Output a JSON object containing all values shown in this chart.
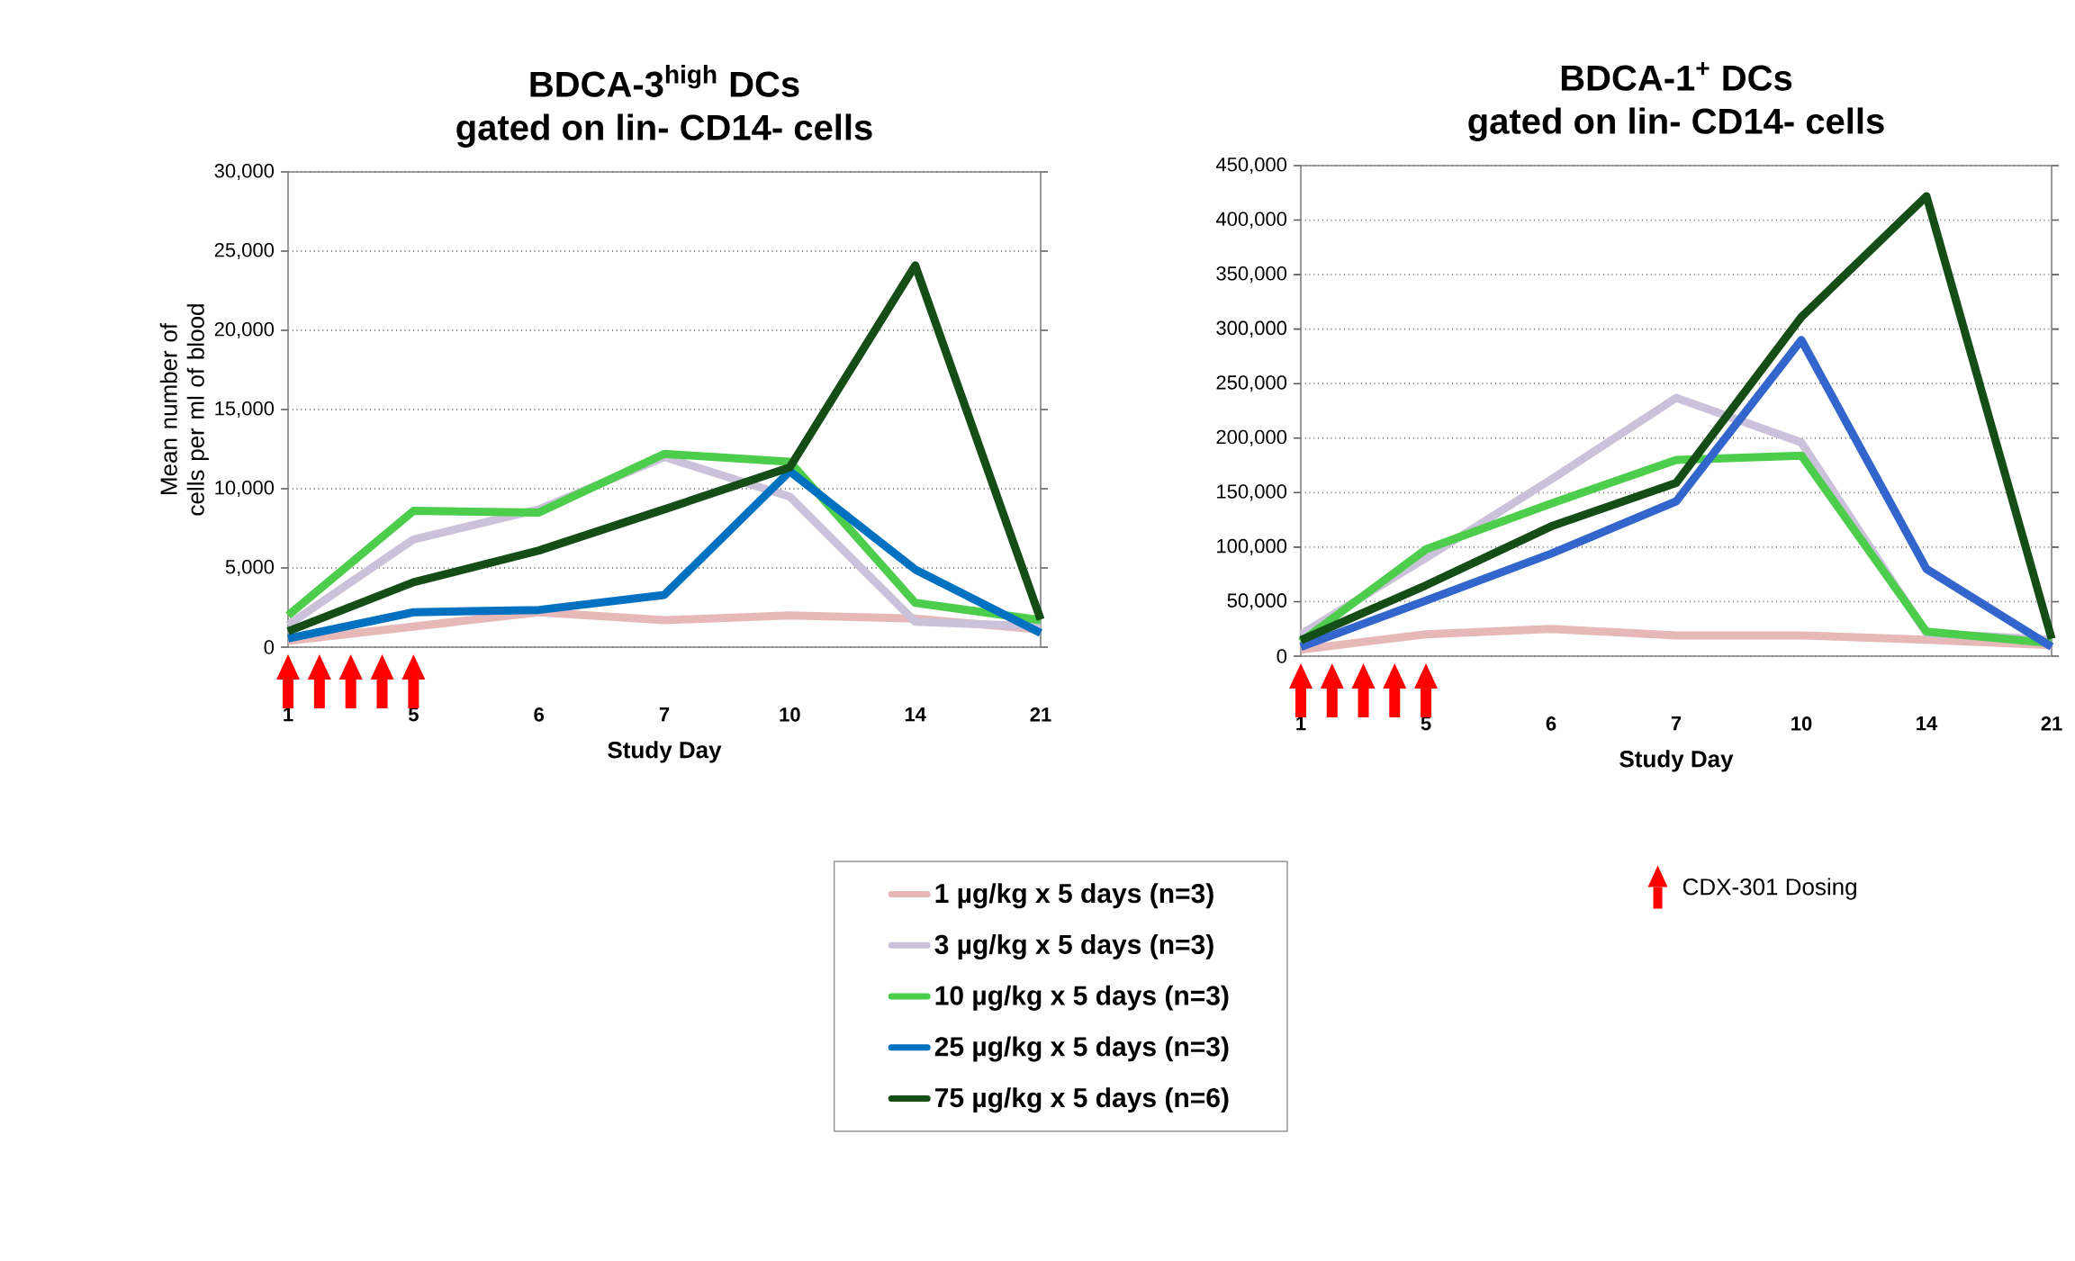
{
  "chart_data": [
    {
      "type": "line",
      "title": "BDCA-3$^{high}$ DCs",
      "subtitle": "gated on lin- CD14- cells",
      "xlabel": "Study Day",
      "ylabel": "Mean number of cells per ml of blood",
      "categories": [
        "1",
        "5",
        "6",
        "7",
        "10",
        "14",
        "21"
      ],
      "ylim": [
        0,
        30000
      ],
      "yticks": [
        0,
        {
          "value": 5000,
          "label": "5,000"
        },
        {
          "value": 10000,
          "label": "10,000"
        },
        {
          "value": 15000,
          "label": "15,000"
        },
        {
          "value": 20000,
          "label": "20,000"
        },
        {
          "value": 25000,
          "label": "25,000"
        },
        {
          "value": 30000,
          "label": "30,000"
        }
      ],
      "grid": "y",
      "legend": "bottom",
      "annotations": [
        "CDX-301 Dosing"
      ],
      "series": [
        {
          "name": "1 µg/kg x 5 days (n=3)",
          "color": "#e6b9b8",
          "values": [
            400,
            null,
            2200,
            1700,
            2000,
            1800,
            1100
          ]
        },
        {
          "name": "3 µg/kg x 5 days (n=3)",
          "color": "#ccc1da",
          "values": [
            1400,
            6800,
            8700,
            12000,
            9500,
            1600,
            1300
          ]
        },
        {
          "name": "10 µg/kg x 5 days (n=3)",
          "color": "#4ccd4c",
          "values": [
            2000,
            8600,
            8500,
            12200,
            11700,
            2800,
            1700
          ]
        },
        {
          "name": "25 µg/kg x 5 days (n=3)",
          "color": "#0070c0",
          "values": [
            550,
            2200,
            2350,
            3300,
            11100,
            4900,
            900
          ]
        },
        {
          "name": "75 µg/kg x 5 days (n=6)",
          "color": "#154d16",
          "values": [
            1000,
            4100,
            6100,
            8700,
            11350,
            24100,
            1750
          ]
        }
      ]
    },
    {
      "type": "line",
      "title": "BDCA-1$^{+}$ DCs",
      "subtitle": "gated on lin- CD14- cells",
      "xlabel": "Study Day",
      "categories": [
        "1",
        "5",
        "6",
        "7",
        "10",
        "14",
        "21"
      ],
      "ylim": [
        0,
        450000
      ],
      "yticks": [
        0,
        {
          "value": 50000,
          "label": "50,000"
        },
        {
          "value": 100000,
          "label": "100,000"
        },
        {
          "value": 150000,
          "label": "150,000"
        },
        {
          "value": 200000,
          "label": "200,000"
        },
        {
          "value": 250000,
          "label": "250,000"
        },
        {
          "value": 300000,
          "label": "300,000"
        },
        {
          "value": 350000,
          "label": "350,000"
        },
        {
          "value": 400000,
          "label": "400,000"
        },
        {
          "value": 450000,
          "label": "450,000"
        }
      ],
      "grid": "y",
      "series": [
        {
          "color": "#e6b9b8",
          "values": [
            6000,
            20000,
            25000,
            19000,
            19000,
            15000,
            10000
          ]
        },
        {
          "color": "#ccc1da",
          "values": [
            20000,
            90000,
            162000,
            237000,
            196000,
            21000,
            15000
          ]
        },
        {
          "color": "#4ccd4c",
          "values": [
            13000,
            98000,
            140000,
            180000,
            184000,
            22500,
            12000
          ]
        },
        {
          "color": "#3366cc",
          "values": [
            8500,
            51000,
            94000,
            142000,
            290000,
            80000,
            8500
          ]
        },
        {
          "color": "#154d16",
          "values": [
            14500,
            65000,
            119000,
            159000,
            311000,
            422000,
            16000
          ]
        }
      ]
    }
  ]
}
